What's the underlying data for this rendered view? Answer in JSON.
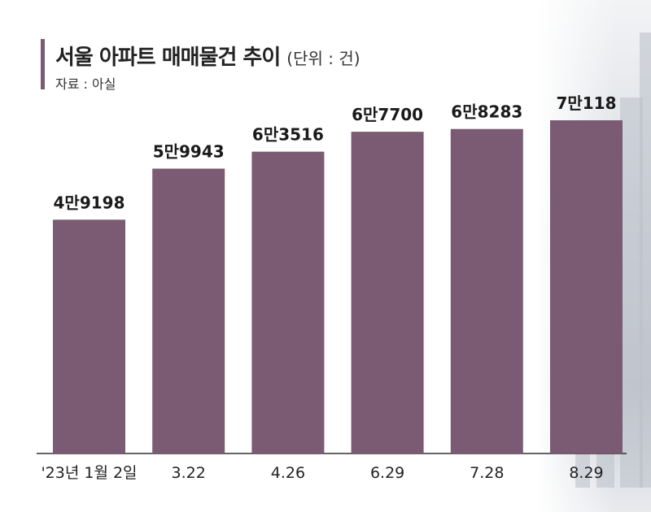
{
  "header": {
    "title": "서울 아파트 매매물건 추이",
    "unit": "(단위 : 건)",
    "source": "자료 : 아실"
  },
  "colors": {
    "bar": "#7b5a73",
    "accent": "#7b5a73",
    "axis": "#333333"
  },
  "chart_data": {
    "type": "bar",
    "title": "서울 아파트 매매물건 추이",
    "unit": "(단위 : 건)",
    "categories": [
      "'23년 1월 2일",
      "3.22",
      "4.26",
      "6.29",
      "7.28",
      "8.29"
    ],
    "values": [
      49198,
      59943,
      63516,
      67700,
      68283,
      70118
    ],
    "value_labels": [
      "4만9198",
      "5만9943",
      "6만3516",
      "6만7700",
      "6만8283",
      "7만118"
    ],
    "xlabel": "",
    "ylabel": "",
    "ylim": [
      0,
      75000
    ],
    "grid": false,
    "legend": "none"
  }
}
